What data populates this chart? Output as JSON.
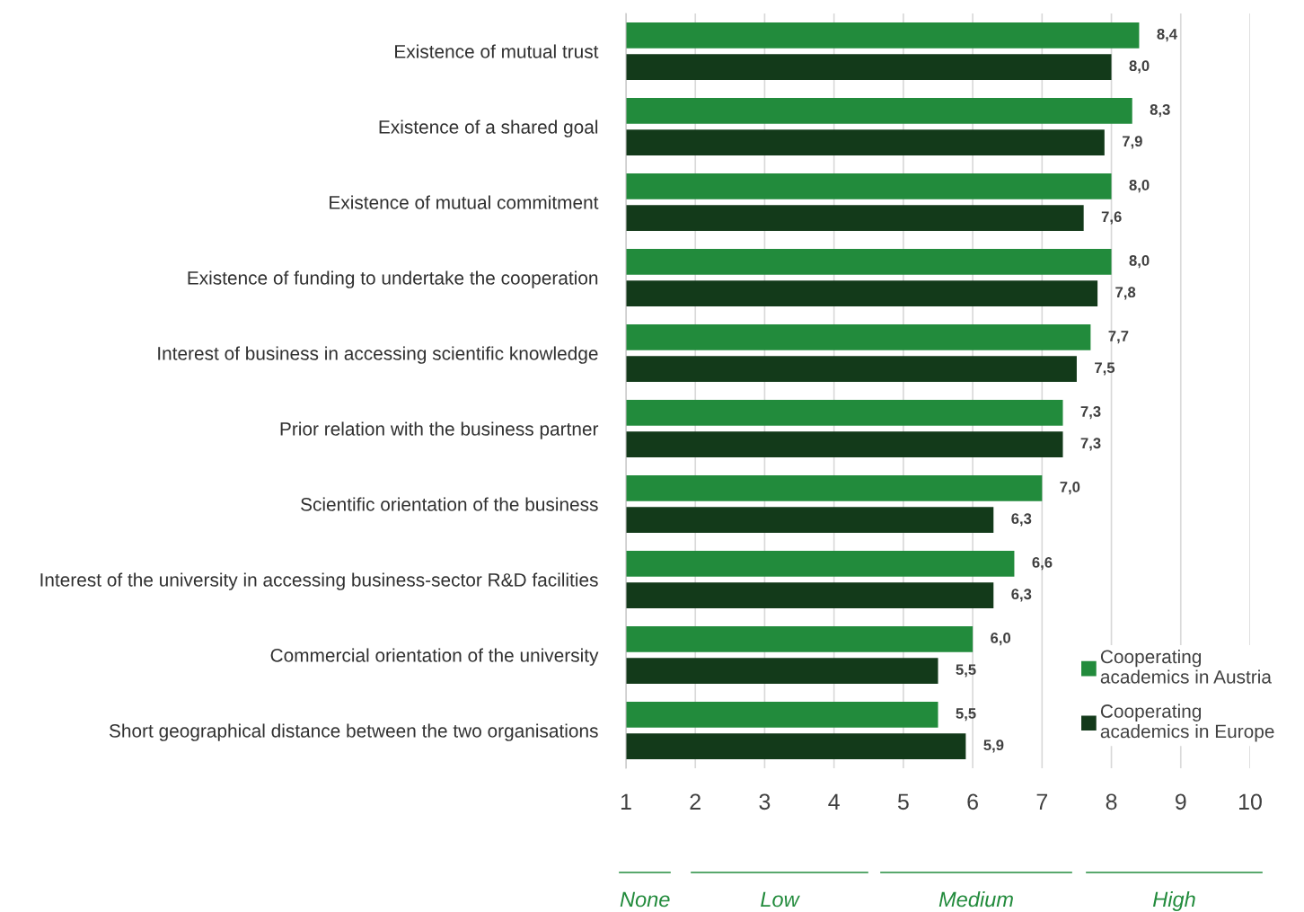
{
  "chart_data": {
    "type": "bar",
    "orientation": "horizontal",
    "categories": [
      "Existence of mutual trust",
      "Existence of a shared goal",
      "Existence of mutual commitment",
      "Existence of funding to undertake the cooperation",
      "Interest of business in accessing scientific knowledge",
      "Prior relation with the business partner",
      "Scientific orientation of the business",
      "Interest of the university in accessing business-sector R&D facilities",
      "Commercial orientation of the university",
      "Short geographical distance between the two organisations"
    ],
    "series": [
      {
        "name": "Cooperating\nacademics in Austria",
        "color": "#228b3c",
        "values": [
          8.4,
          8.3,
          8.0,
          8.0,
          7.7,
          7.3,
          7.0,
          6.6,
          6.0,
          5.5
        ],
        "value_labels": [
          "8,4",
          "8,3",
          "8,0",
          "8,0",
          "7,7",
          "7,3",
          "7,0",
          "6,6",
          "6,0",
          "5,5"
        ]
      },
      {
        "name": "Cooperating\nacademics in Europe",
        "color": "#133a1a",
        "values": [
          8.0,
          7.9,
          7.6,
          7.8,
          7.5,
          7.3,
          6.3,
          6.3,
          5.5,
          5.9
        ],
        "value_labels": [
          "8,0",
          "7,9",
          "7,6",
          "7,8",
          "7,5",
          "7,3",
          "6,3",
          "6,3",
          "5,5",
          "5,9"
        ]
      }
    ],
    "xlim": [
      1,
      10
    ],
    "xticks": [
      1,
      2,
      3,
      4,
      5,
      6,
      7,
      8,
      9,
      10
    ],
    "grid": "x",
    "legend": "bottom right",
    "annotations": [
      "None",
      "Low",
      "Medium",
      "High"
    ]
  }
}
